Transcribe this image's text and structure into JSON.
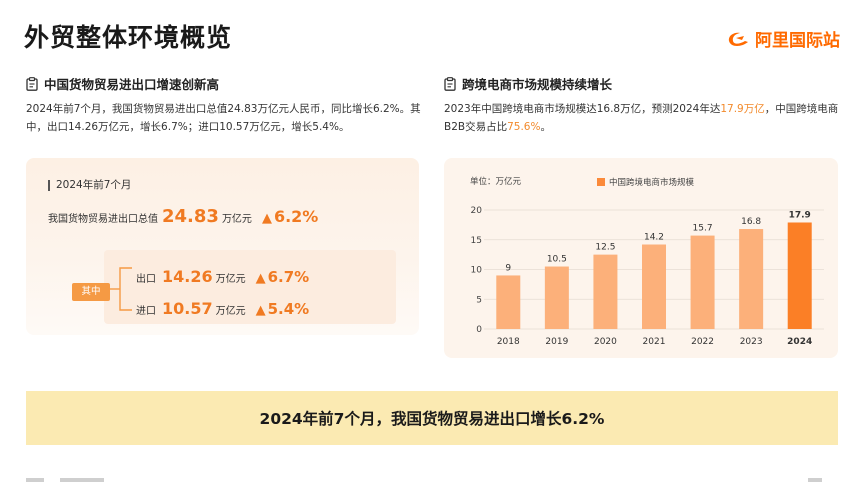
{
  "page": {
    "title": "外贸整体环境概览"
  },
  "logo": {
    "text": "阿里国际站",
    "icon": "alibaba-logo-icon",
    "color": "#ff6a00"
  },
  "left": {
    "heading": "中国货物贸易进出口增速创新高",
    "heading_icon": "clipboard-icon",
    "paragraph": "2024年前7个月，我国货物贸易进出口总值24.83万亿元人民币，同比增长6.2%。其中，出口14.26万亿元，增长6.7%；进口10.57万亿元，增长5.4%。",
    "card": {
      "period": "2024年前7个月",
      "total_label": "我国货物贸易进出口总值",
      "total_value": "24.83",
      "total_unit": "万亿元",
      "total_growth": "6.2%",
      "tag": "其中",
      "export_label": "出口",
      "export_value": "14.26",
      "export_unit": "万亿元",
      "export_growth": "6.7%",
      "import_label": "进口",
      "import_value": "10.57",
      "import_unit": "万亿元",
      "import_growth": "5.4%",
      "up_arrow": "▲"
    }
  },
  "right": {
    "heading": "跨境电商市场规模持续增长",
    "heading_icon": "clipboard-icon",
    "para_part1": "2023年中国跨境电商市场规模达16.8万亿，预测2024年达",
    "para_hl1": "17.9万亿",
    "para_part2": "，中国跨境电商B2B交易占比",
    "para_hl2": "75.6%",
    "para_part3": "。"
  },
  "chart_data": {
    "type": "bar",
    "unit_label": "单位：万亿元",
    "legend": [
      "中国跨境电商市场规模"
    ],
    "legend_placement": "top",
    "categories": [
      "2018",
      "2019",
      "2020",
      "2021",
      "2022",
      "2023",
      "2024"
    ],
    "values": [
      9,
      10.5,
      12.5,
      14.2,
      15.7,
      16.8,
      17.9
    ],
    "value_labels": [
      "9",
      "10.5",
      "12.5",
      "14.2",
      "15.7",
      "16.8",
      "17.9"
    ],
    "yticks": [
      "0",
      "5",
      "10",
      "15",
      "20"
    ],
    "ylim": [
      0,
      20
    ],
    "grid": true,
    "bar_color": "#fcb07a",
    "highlight_color": "#fb7f26",
    "highlight_index": 6
  },
  "banner": {
    "text": "2024年前7个月，我国货物贸易进出口增长6.2%",
    "color": "#fbeab2"
  }
}
